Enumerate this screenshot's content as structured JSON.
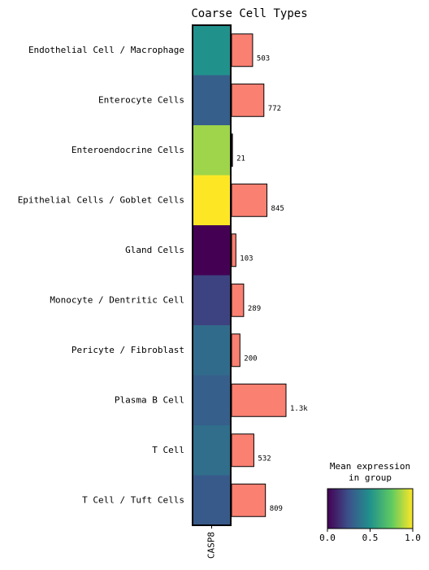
{
  "chart_data": {
    "type": "matrixplot",
    "title": "Coarse Cell Types",
    "categories": [
      "Endothelial Cell / Macrophage",
      "Enterocyte Cells",
      "Enteroendocrine Cells",
      "Epithelial Cells / Goblet Cells",
      "Gland Cells",
      "Monocyte / Dentritic Cell",
      "Pericyte / Fibroblast",
      "Plasma B Cell",
      "T Cell",
      "T Cell / Tuft Cells"
    ],
    "series": [
      {
        "name": "CASP8",
        "values": [
          0.5,
          0.3,
          0.85,
          1.0,
          0.0,
          0.2,
          0.35,
          0.3,
          0.36,
          0.28
        ]
      }
    ],
    "counts": {
      "values": [
        503,
        772,
        21,
        845,
        103,
        289,
        200,
        1300,
        532,
        809
      ],
      "value_labels": [
        "503",
        "772",
        "21",
        "845",
        "103",
        "289",
        "200",
        "1.3k",
        "532",
        "809"
      ],
      "color": "#fa8072"
    },
    "colormap": [
      "#440154",
      "#3b528b",
      "#21918c",
      "#5ec962",
      "#fde725"
    ],
    "colorbar_title": [
      "Mean expression",
      "in group"
    ],
    "clim": [
      0,
      1
    ],
    "colorbar_ticks": [
      {
        "value": 0,
        "label": "0.0"
      },
      0.5,
      {
        "value": 1,
        "label": "1.0"
      }
    ]
  }
}
